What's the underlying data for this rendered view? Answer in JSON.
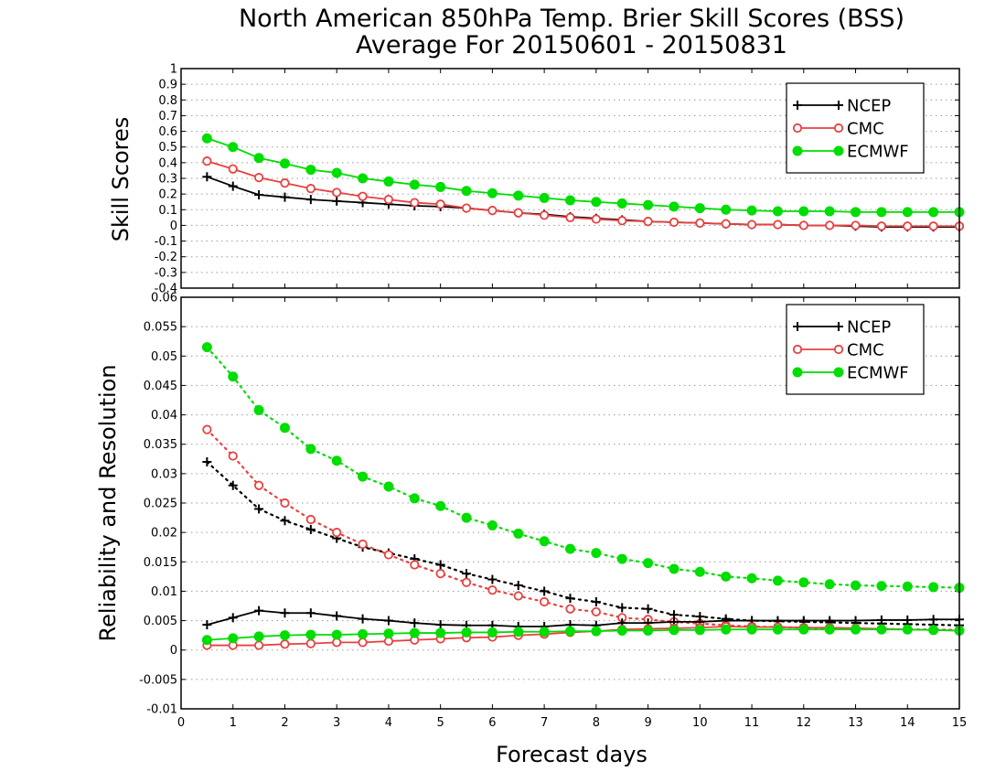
{
  "colors": {
    "NCEP": "#000000",
    "CMC": "#e84040",
    "ECMWF": "#00dd00",
    "grid": "#9a9a9a"
  },
  "chart_data": [
    {
      "type": "line",
      "title": "North American 850hPa Temp. Brier Skill Scores (BSS)",
      "subtitle": "Average For 20150601 - 20150831",
      "xlabel": "",
      "ylabel": "Skill Scores",
      "xlim": [
        0,
        15
      ],
      "ylim": [
        -0.4,
        1
      ],
      "x_ticks": [
        0,
        1,
        2,
        3,
        4,
        5,
        6,
        7,
        8,
        9,
        10,
        11,
        12,
        13,
        14,
        15
      ],
      "y_ticks": [
        -0.4,
        -0.3,
        -0.2,
        -0.1,
        0,
        0.1,
        0.2,
        0.3,
        0.4,
        0.5,
        0.6,
        0.7,
        0.8,
        0.9,
        1
      ],
      "y_tick_labels": [
        "-0.4",
        "-0.3",
        "-0.2",
        "-0.1",
        "0",
        "0.1",
        "0.2",
        "0.3",
        "0.4",
        "0.5",
        "0.6",
        "0.7",
        "0.8",
        "0.9",
        "1"
      ],
      "grid": "horizontal-dotted",
      "legend": "top-right",
      "legend_entries": [
        "NCEP",
        "CMC",
        "ECMWF"
      ],
      "x": [
        0.5,
        1,
        1.5,
        2,
        2.5,
        3,
        3.5,
        4,
        4.5,
        5,
        5.5,
        6,
        6.5,
        7,
        7.5,
        8,
        8.5,
        9,
        9.5,
        10,
        10.5,
        11,
        11.5,
        12,
        12.5,
        13,
        13.5,
        14,
        14.5,
        15
      ],
      "series": [
        {
          "name": "NCEP",
          "marker": "plus",
          "line": "solid",
          "values": [
            0.31,
            0.25,
            0.195,
            0.18,
            0.165,
            0.155,
            0.145,
            0.135,
            0.125,
            0.12,
            0.11,
            0.095,
            0.08,
            0.07,
            0.055,
            0.045,
            0.035,
            0.025,
            0.02,
            0.015,
            0.01,
            0.005,
            0.005,
            0.0,
            0.0,
            -0.005,
            -0.01,
            -0.01,
            -0.01,
            -0.01
          ]
        },
        {
          "name": "CMC",
          "marker": "open-circle",
          "line": "solid",
          "values": [
            0.41,
            0.36,
            0.305,
            0.27,
            0.235,
            0.21,
            0.185,
            0.165,
            0.145,
            0.135,
            0.11,
            0.095,
            0.08,
            0.065,
            0.05,
            0.04,
            0.03,
            0.025,
            0.02,
            0.015,
            0.01,
            0.005,
            0.005,
            0.0,
            0.0,
            0.0,
            -0.005,
            -0.005,
            -0.005,
            -0.005
          ]
        },
        {
          "name": "ECMWF",
          "marker": "filled-circle",
          "line": "solid",
          "values": [
            0.555,
            0.5,
            0.43,
            0.395,
            0.355,
            0.335,
            0.3,
            0.28,
            0.26,
            0.245,
            0.22,
            0.205,
            0.19,
            0.175,
            0.16,
            0.15,
            0.14,
            0.13,
            0.12,
            0.11,
            0.1,
            0.095,
            0.09,
            0.09,
            0.09,
            0.085,
            0.085,
            0.085,
            0.085,
            0.085
          ]
        }
      ]
    },
    {
      "type": "line",
      "title": "",
      "xlabel": "Forecast days",
      "ylabel": "Reliability and Resolution",
      "xlim": [
        0,
        15
      ],
      "ylim": [
        -0.01,
        0.06
      ],
      "x_ticks": [
        0,
        1,
        2,
        3,
        4,
        5,
        6,
        7,
        8,
        9,
        10,
        11,
        12,
        13,
        14,
        15
      ],
      "y_ticks": [
        -0.01,
        -0.005,
        0,
        0.005,
        0.01,
        0.015,
        0.02,
        0.025,
        0.03,
        0.035,
        0.04,
        0.045,
        0.05,
        0.055,
        0.06
      ],
      "y_tick_labels": [
        "-0.01",
        "-0.005",
        "0",
        "0.005",
        "0.01",
        "0.015",
        "0.02",
        "0.025",
        "0.03",
        "0.035",
        "0.04",
        "0.045",
        "0.05",
        "0.055",
        "0.06"
      ],
      "grid": "horizontal-dotted",
      "legend": "top-right",
      "legend_entries": [
        "NCEP",
        "CMC",
        "ECMWF"
      ],
      "x": [
        0.5,
        1,
        1.5,
        2,
        2.5,
        3,
        3.5,
        4,
        4.5,
        5,
        5.5,
        6,
        6.5,
        7,
        7.5,
        8,
        8.5,
        9,
        9.5,
        10,
        10.5,
        11,
        11.5,
        12,
        12.5,
        13,
        13.5,
        14,
        14.5,
        15
      ],
      "series": [
        {
          "name": "NCEP",
          "component": "resolution",
          "marker": "plus",
          "line": "dotted",
          "values": [
            0.032,
            0.028,
            0.024,
            0.022,
            0.0205,
            0.019,
            0.0175,
            0.0165,
            0.0155,
            0.0145,
            0.013,
            0.012,
            0.011,
            0.01,
            0.0088,
            0.0082,
            0.0072,
            0.007,
            0.006,
            0.0057,
            0.0053,
            0.005,
            0.0049,
            0.0048,
            0.0047,
            0.0046,
            0.0045,
            0.0044,
            0.0043,
            0.0042
          ]
        },
        {
          "name": "CMC",
          "component": "resolution",
          "marker": "open-circle",
          "line": "dotted",
          "values": [
            0.0375,
            0.033,
            0.028,
            0.025,
            0.0222,
            0.02,
            0.018,
            0.0162,
            0.0145,
            0.013,
            0.0115,
            0.0102,
            0.0092,
            0.0082,
            0.007,
            0.0065,
            0.0055,
            0.0052,
            0.0048,
            0.0045,
            0.0042,
            0.004,
            0.0039,
            0.0038,
            0.0037,
            0.0036,
            0.0036,
            0.0035,
            0.0035,
            0.0034
          ]
        },
        {
          "name": "ECMWF",
          "component": "resolution",
          "marker": "filled-circle",
          "line": "dotted",
          "values": [
            0.0515,
            0.0465,
            0.0408,
            0.0378,
            0.0342,
            0.0322,
            0.0295,
            0.0278,
            0.0258,
            0.0245,
            0.0225,
            0.0212,
            0.0198,
            0.0185,
            0.0172,
            0.0165,
            0.0155,
            0.0148,
            0.0138,
            0.0133,
            0.0125,
            0.0122,
            0.0118,
            0.0115,
            0.0112,
            0.011,
            0.0109,
            0.0108,
            0.0107,
            0.0106
          ]
        },
        {
          "name": "NCEP",
          "component": "reliability",
          "marker": "plus",
          "line": "solid",
          "values": [
            0.0043,
            0.0055,
            0.0067,
            0.0063,
            0.0063,
            0.0058,
            0.0053,
            0.005,
            0.0046,
            0.0043,
            0.0042,
            0.0042,
            0.004,
            0.004,
            0.0043,
            0.0042,
            0.0046,
            0.0046,
            0.0048,
            0.0048,
            0.005,
            0.005,
            0.005,
            0.005,
            0.005,
            0.005,
            0.0051,
            0.0051,
            0.0052,
            0.0052
          ]
        },
        {
          "name": "CMC",
          "component": "reliability",
          "marker": "open-circle",
          "line": "solid",
          "values": [
            0.0008,
            0.0008,
            0.0008,
            0.001,
            0.0011,
            0.0013,
            0.0013,
            0.0015,
            0.0017,
            0.0019,
            0.0021,
            0.0022,
            0.0025,
            0.0027,
            0.003,
            0.0032,
            0.0035,
            0.0036,
            0.0037,
            0.0038,
            0.004,
            0.0039,
            0.0039,
            0.0038,
            0.0038,
            0.0037,
            0.0036,
            0.0035,
            0.0034,
            0.0033
          ]
        },
        {
          "name": "ECMWF",
          "component": "reliability",
          "marker": "filled-circle",
          "line": "solid",
          "values": [
            0.0017,
            0.002,
            0.0023,
            0.0025,
            0.0026,
            0.0026,
            0.0027,
            0.0028,
            0.0029,
            0.0029,
            0.003,
            0.003,
            0.0031,
            0.0031,
            0.0032,
            0.0032,
            0.0033,
            0.0033,
            0.0034,
            0.0034,
            0.0035,
            0.0035,
            0.0035,
            0.0035,
            0.0035,
            0.0035,
            0.0035,
            0.0035,
            0.0034,
            0.0033
          ]
        }
      ]
    }
  ]
}
